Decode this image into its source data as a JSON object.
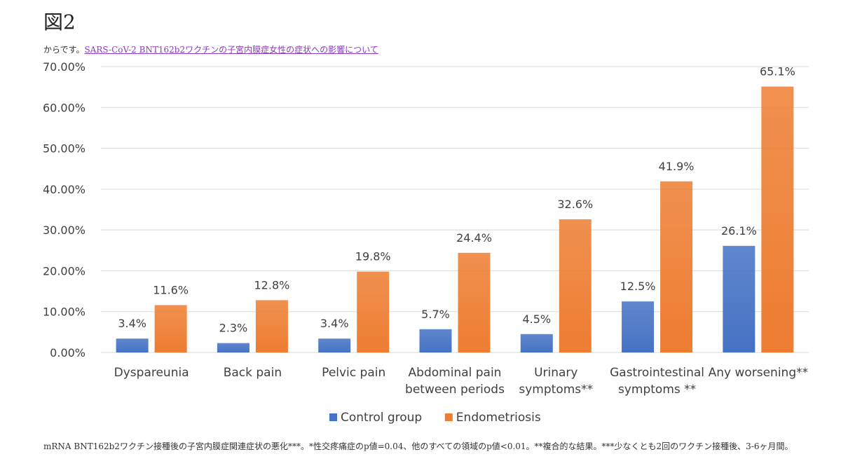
{
  "heading": "図2",
  "source": {
    "prefix": "からです。",
    "link_text": "SARS-CoV-2 BNT162b2ワクチンの子宮内膜症女性の症状への影響について"
  },
  "chart_data": {
    "type": "bar",
    "categories": [
      [
        "Dyspareunia"
      ],
      [
        "Back pain"
      ],
      [
        "Pelvic pain"
      ],
      [
        "Abdominal pain",
        "between periods"
      ],
      [
        "Urinary",
        "symptoms**"
      ],
      [
        "Gastrointestinal",
        "symptoms **"
      ],
      [
        "Any worsening**"
      ]
    ],
    "series": [
      {
        "name": "Control group",
        "color": "#4472c4",
        "values": [
          3.4,
          2.3,
          3.4,
          5.7,
          4.5,
          12.5,
          26.1
        ],
        "labels": [
          "3.4%",
          "2.3%",
          "3.4%",
          "5.7%",
          "4.5%",
          "12.5%",
          "26.1%"
        ]
      },
      {
        "name": "Endometriosis",
        "color": "#ed7d31",
        "values": [
          11.6,
          12.8,
          19.8,
          24.4,
          32.6,
          41.9,
          65.1
        ],
        "labels": [
          "11.6%",
          "12.8%",
          "19.8%",
          "24.4%",
          "32.6%",
          "41.9%",
          "65.1%"
        ]
      }
    ],
    "ylim": [
      0,
      70
    ],
    "yticks": [
      "0.00%",
      "10.00%",
      "20.00%",
      "30.00%",
      "40.00%",
      "50.00%",
      "60.00%",
      "70.00%"
    ],
    "grid": true,
    "legend_position": "bottom",
    "title": "",
    "xlabel": "",
    "ylabel": ""
  },
  "caption": "mRNA BNT162b2ワクチン接種後の子宮内膜症関連症状の悪化***。*性交疼痛症のp値=0.04、他のすべての領域のp値<0.01。**複合的な結果。***少なくとも2回のワクチン接種後、3-6ヶ月間。"
}
